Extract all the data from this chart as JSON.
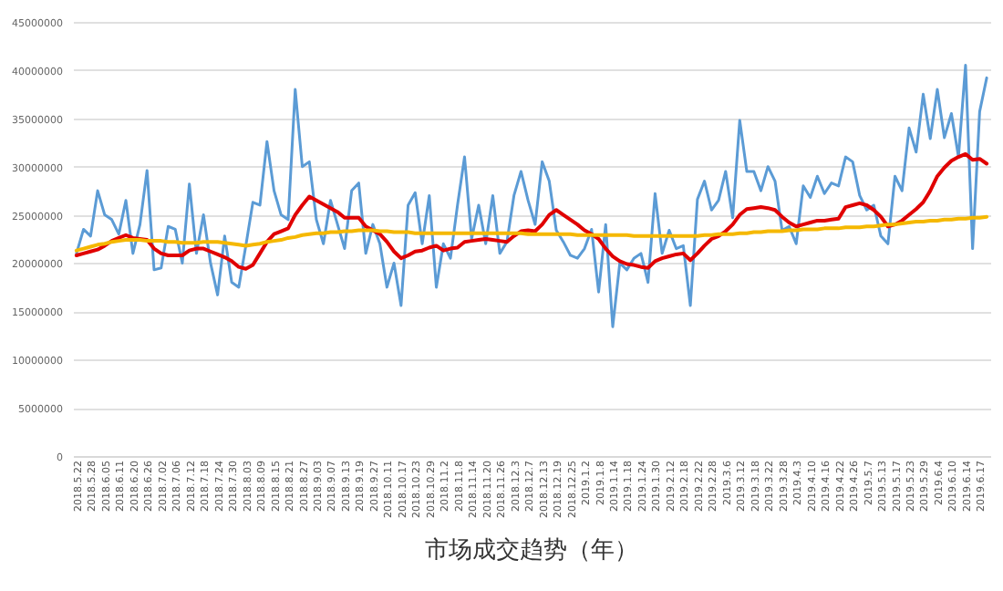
{
  "chart_data": {
    "type": "line",
    "title": "市场成交趋势（年）",
    "categories": [
      "2018.5.22",
      null,
      "2018.5.28",
      null,
      "2018.6.05",
      null,
      "2018.6.11",
      null,
      "2018.6.20",
      null,
      "2018.6.26",
      null,
      "2018.7.02",
      null,
      "2018.7.06",
      null,
      "2018.7.12",
      null,
      "2018.7.18",
      null,
      "2018.7.24",
      null,
      "2018.7.30",
      null,
      "2018.8.03",
      null,
      "2018.8.09",
      null,
      "2018.8.15",
      null,
      "2018.8.21",
      null,
      "2018.8.27",
      null,
      "2018.9.03",
      null,
      "2018.9.07",
      null,
      "2018.9.13",
      null,
      "2018.9.19",
      null,
      "2018.9.27",
      null,
      "2018.10.11",
      null,
      "2018.10.17",
      null,
      "2018.10.23",
      null,
      "2018.10.29",
      null,
      "2018.11.2",
      null,
      "2018.11.8",
      null,
      "2018.11.14",
      null,
      "2018.11.20",
      null,
      "2018.11.26",
      null,
      "2018.12.3",
      null,
      "2018.12.7",
      null,
      "2018.12.13",
      null,
      "2018.12.19",
      null,
      "2018.12.25",
      null,
      "2019.1.2",
      null,
      "2019.1.8",
      null,
      "2019.1.14",
      null,
      "2019.1.18",
      null,
      "2019.1.24",
      null,
      "2019.1.30",
      null,
      "2019.2.12",
      null,
      "2019.2.18",
      null,
      "2019.2.22",
      null,
      "2019.2.28",
      null,
      "2019.3.6",
      null,
      "2019.3.12",
      null,
      "2019.3.18",
      null,
      "2019.3.22",
      null,
      "2019.3.28",
      null,
      "2019.4.3",
      null,
      "2019.4.10",
      null,
      "2019.4.16",
      null,
      "2019.4.22",
      null,
      "2019.4.26",
      null,
      "2019.5.7",
      null,
      "2019.5.13",
      null,
      "2019.5.17",
      null,
      "2019.5.23",
      null,
      "2019.5.29",
      null,
      "2019.6.4",
      null,
      "2019.6.10",
      null,
      "2019.6.14",
      null,
      "2019.6.17",
      null
    ],
    "series": [
      {
        "color": "#5b9bd5",
        "values": [
          21000000,
          23500000,
          22800000,
          27500000,
          25000000,
          24500000,
          23000000,
          26500000,
          21000000,
          24000000,
          29600000,
          19300000,
          19500000,
          23800000,
          23500000,
          20000000,
          28200000,
          21000000,
          25000000,
          20000000,
          16700000,
          22800000,
          18000000,
          17500000,
          21800000,
          26300000,
          26000000,
          32600000,
          27500000,
          25000000,
          24500000,
          38000000,
          30000000,
          30500000,
          24500000,
          22000000,
          26500000,
          24000000,
          21500000,
          27500000,
          28300000,
          21000000,
          24000000,
          22000000,
          17500000,
          20000000,
          15600000,
          26000000,
          27300000,
          22000000,
          27000000,
          17500000,
          22000000,
          20500000,
          26000000,
          31000000,
          22500000,
          26000000,
          22000000,
          27000000,
          21000000,
          22200000,
          27000000,
          29500000,
          26500000,
          24000000,
          30500000,
          28500000,
          23400000,
          22200000,
          20800000,
          20500000,
          21500000,
          23500000,
          17000000,
          24000000,
          13400000,
          20000000,
          19300000,
          20500000,
          21000000,
          18000000,
          27200000,
          21000000,
          23400000,
          21500000,
          21800000,
          15600000,
          26600000,
          28500000,
          25500000,
          26500000,
          29500000,
          24700000,
          34800000,
          29500000,
          29500000,
          27500000,
          30000000,
          28500000,
          23400000,
          23800000,
          22000000,
          28000000,
          26800000,
          29000000,
          27200000,
          28300000,
          28000000,
          31000000,
          30500000,
          27000000,
          25500000,
          26000000,
          22800000,
          22000000,
          29000000,
          27500000,
          34000000,
          31500000,
          37500000,
          32900000,
          38000000,
          33000000,
          35500000,
          31000000,
          40500000,
          21500000,
          35700000,
          39200000
        ]
      },
      {
        "color": "#e00000",
        "values": [
          20800000,
          21000000,
          21200000,
          21400000,
          21800000,
          22300000,
          22600000,
          22900000,
          22600000,
          22500000,
          22400000,
          21500000,
          21000000,
          20800000,
          20800000,
          20800000,
          21300000,
          21500000,
          21500000,
          21200000,
          20900000,
          20600000,
          20200000,
          19600000,
          19400000,
          19800000,
          21000000,
          22200000,
          23000000,
          23300000,
          23600000,
          25000000,
          26000000,
          26900000,
          26500000,
          26100000,
          25700000,
          25300000,
          24700000,
          24700000,
          24700000,
          23800000,
          23400000,
          23000000,
          22200000,
          21200000,
          20500000,
          20800000,
          21200000,
          21300000,
          21600000,
          21800000,
          21300000,
          21500000,
          21600000,
          22200000,
          22300000,
          22400000,
          22500000,
          22400000,
          22300000,
          22200000,
          22800000,
          23300000,
          23400000,
          23300000,
          24000000,
          25000000,
          25500000,
          25000000,
          24500000,
          24000000,
          23400000,
          23000000,
          22500000,
          21500000,
          20700000,
          20200000,
          19900000,
          19800000,
          19600000,
          19500000,
          20200000,
          20500000,
          20700000,
          20900000,
          21000000,
          20300000,
          21000000,
          21800000,
          22500000,
          22800000,
          23300000,
          24000000,
          25000000,
          25600000,
          25700000,
          25800000,
          25700000,
          25500000,
          24800000,
          24200000,
          23800000,
          24000000,
          24200000,
          24400000,
          24400000,
          24500000,
          24600000,
          25800000,
          26000000,
          26200000,
          26000000,
          25500000,
          24800000,
          23800000,
          24000000,
          24400000,
          25000000,
          25600000,
          26300000,
          27500000,
          29000000,
          29900000,
          30600000,
          31000000,
          31300000,
          30700000,
          30800000,
          30300000
        ]
      },
      {
        "color": "#f5b800",
        "values": [
          21300000,
          21500000,
          21700000,
          21900000,
          22000000,
          22200000,
          22300000,
          22400000,
          22400000,
          22400000,
          22300000,
          22300000,
          22300000,
          22200000,
          22200000,
          22100000,
          22100000,
          22100000,
          22200000,
          22200000,
          22200000,
          22100000,
          22000000,
          21900000,
          21800000,
          21900000,
          22000000,
          22200000,
          22300000,
          22400000,
          22600000,
          22700000,
          22900000,
          23000000,
          23100000,
          23100000,
          23200000,
          23200000,
          23300000,
          23300000,
          23400000,
          23400000,
          23400000,
          23300000,
          23300000,
          23200000,
          23200000,
          23200000,
          23100000,
          23100000,
          23100000,
          23100000,
          23100000,
          23100000,
          23100000,
          23100000,
          23100000,
          23100000,
          23100000,
          23100000,
          23100000,
          23100000,
          23100000,
          23100000,
          23000000,
          23000000,
          23000000,
          23000000,
          23000000,
          23000000,
          23000000,
          22900000,
          22900000,
          22900000,
          22900000,
          22900000,
          22900000,
          22900000,
          22900000,
          22800000,
          22800000,
          22800000,
          22800000,
          22800000,
          22800000,
          22800000,
          22800000,
          22800000,
          22800000,
          22900000,
          22900000,
          23000000,
          23000000,
          23000000,
          23100000,
          23100000,
          23200000,
          23200000,
          23300000,
          23300000,
          23300000,
          23400000,
          23400000,
          23500000,
          23500000,
          23500000,
          23600000,
          23600000,
          23600000,
          23700000,
          23700000,
          23700000,
          23800000,
          23800000,
          23900000,
          24000000,
          24000000,
          24100000,
          24200000,
          24300000,
          24300000,
          24400000,
          24400000,
          24500000,
          24500000,
          24600000,
          24600000,
          24700000,
          24700000,
          24800000
        ]
      }
    ],
    "ylim": [
      0,
      45000000
    ],
    "yticks": [
      0,
      5000000,
      10000000,
      15000000,
      20000000,
      25000000,
      30000000,
      35000000,
      40000000,
      45000000
    ],
    "grid": "y"
  }
}
